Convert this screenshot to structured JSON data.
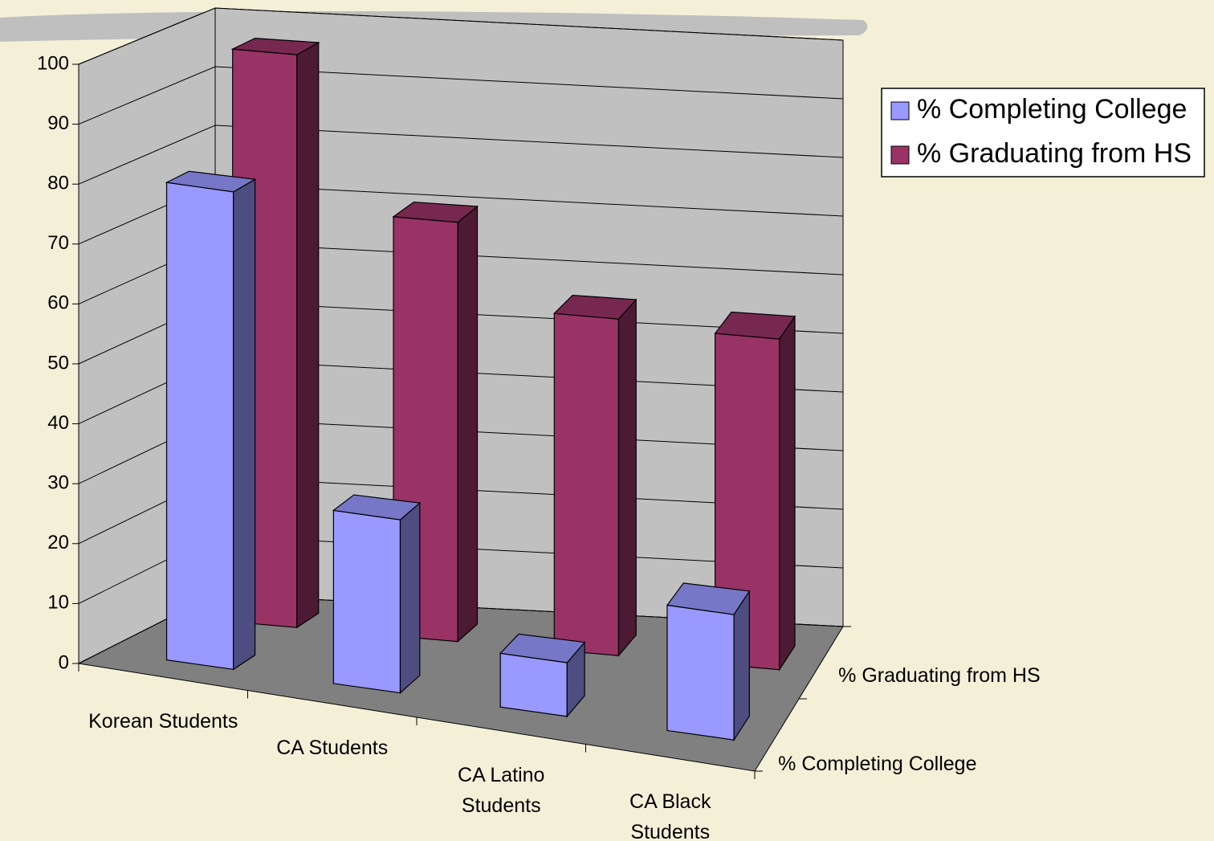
{
  "chart_data": {
    "type": "bar3d",
    "categories": [
      "Korean Students",
      "CA Students",
      "CA Latino Students",
      "CA Black Students"
    ],
    "series": [
      {
        "name": "% Completing College",
        "color": "#9999ff",
        "values": [
          80,
          29,
          9,
          21
        ]
      },
      {
        "name": "% Graduating from HS",
        "color": "#993366",
        "values": [
          97,
          71,
          57,
          56
        ]
      }
    ],
    "ylim": [
      0,
      100
    ],
    "yticks": [
      0,
      10,
      20,
      30,
      40,
      50,
      60,
      70,
      80,
      90,
      100
    ],
    "grid": true,
    "legend": "top-right"
  }
}
